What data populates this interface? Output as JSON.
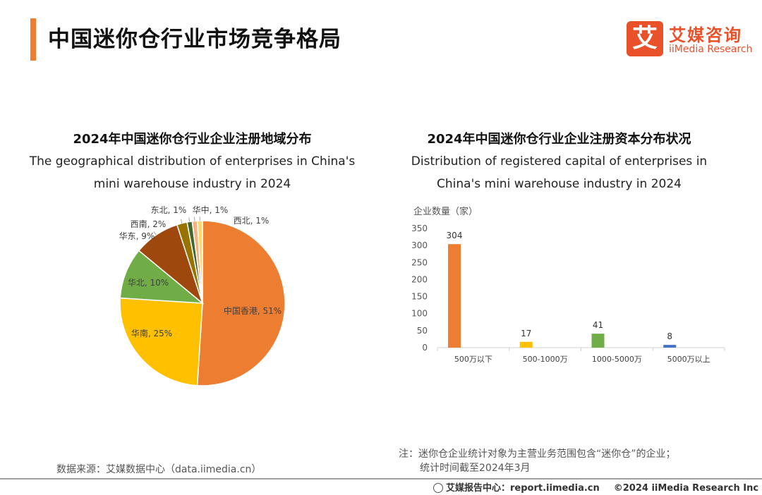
{
  "page": {
    "title": "中国迷你仓行业市场竞争格局",
    "logo_mark": "艾",
    "logo_cn": "艾媒咨询",
    "logo_en": "iiMedia Research"
  },
  "left_chart": {
    "title": "2024年中国迷你仓行业企业注册地域分布",
    "subtitle_line1": "The geographical distribution of enterprises in China's",
    "subtitle_line2": "mini warehouse industry in 2024"
  },
  "right_chart": {
    "title": "2024年中国迷你仓行业企业注册资本分布状况",
    "subtitle_line1": "Distribution of registered capital of enterprises in",
    "subtitle_line2": "China's mini warehouse industry in 2024"
  },
  "chart_data": [
    {
      "type": "pie",
      "labels": [
        "中国香港",
        "华南",
        "华北",
        "华东",
        "西南",
        "东北",
        "华中",
        "西北"
      ],
      "values": [
        51,
        25,
        10,
        9,
        2,
        1,
        1,
        1
      ],
      "display_labels": [
        "中国香港, 51%",
        "华南, 25%",
        "华北, 10%",
        "华东, 9%",
        "西南, 2%",
        "东北, 1%",
        "华中, 1%",
        "西北, 1%"
      ],
      "colors": [
        "#ed7d31",
        "#ffc000",
        "#70ad47",
        "#9e480e",
        "#997300",
        "#43682b",
        "#f4b183",
        "#ffd966"
      ]
    },
    {
      "type": "bar",
      "ylabel": "企业数量（家）",
      "categories": [
        "500万以下",
        "500-1000万",
        "1000-5000万",
        "5000万以上"
      ],
      "values": [
        304,
        17,
        41,
        8
      ],
      "value_labels": [
        "304",
        "17",
        "41",
        "8"
      ],
      "colors": [
        "#ed7d31",
        "#ffc000",
        "#70ad47",
        "#4472c4"
      ],
      "ylim": [
        0,
        350
      ],
      "yticks": [
        "0",
        "50",
        "100",
        "150",
        "200",
        "250",
        "300",
        "350"
      ],
      "grid": false
    }
  ],
  "footer": {
    "source": "数据来源：艾媒数据中心（data.iimedia.cn）",
    "note_line1": "注：迷你仓企业统计对象为主营业务范围包含“迷你仓”的企业；",
    "note_line2": "统计时间截至2024年3月",
    "report": "艾媒报告中心：report.iimedia.cn",
    "copyright": "©2024  iiMedia Research  Inc"
  }
}
